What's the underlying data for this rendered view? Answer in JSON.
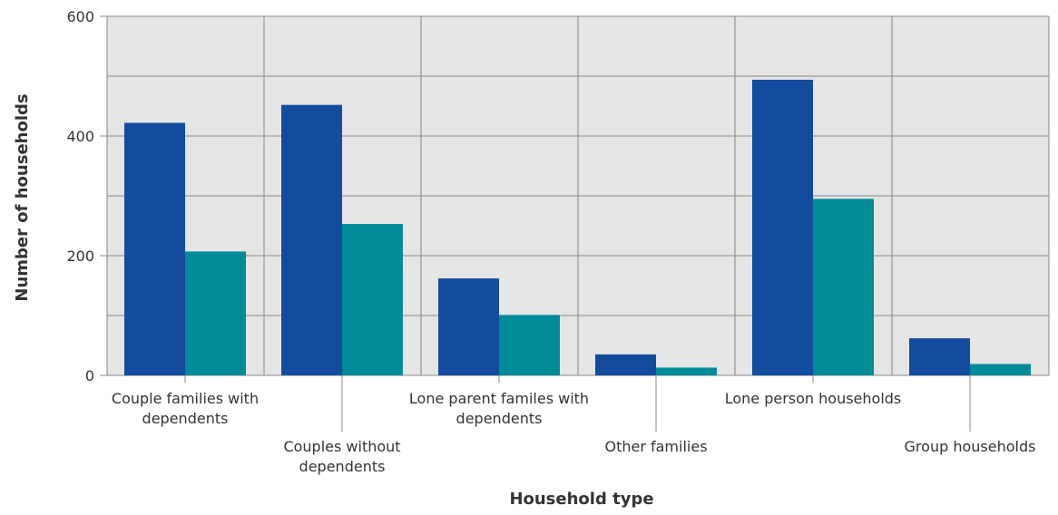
{
  "chart_data": {
    "type": "bar",
    "xlabel": "Household type",
    "ylabel": "Number of households",
    "ylim": [
      0,
      600
    ],
    "yticks": [
      0,
      200,
      400,
      600
    ],
    "grid": true,
    "legend": "none",
    "categories": [
      [
        "Couple families with",
        "dependents"
      ],
      [
        "Couples without",
        "dependents"
      ],
      [
        "Lone parent familes with",
        "dependents"
      ],
      [
        "Other families"
      ],
      [
        "Lone person households"
      ],
      [
        "Group households"
      ]
    ],
    "series": [
      {
        "color": "#134c9e",
        "values": [
          422,
          452,
          162,
          35,
          494,
          62
        ]
      },
      {
        "color": "#008b99",
        "values": [
          207,
          253,
          101,
          13,
          295,
          19
        ]
      }
    ]
  },
  "colors": {
    "plot_background": "#e5e5e5",
    "gridline": "#888888",
    "text": "#333333"
  }
}
